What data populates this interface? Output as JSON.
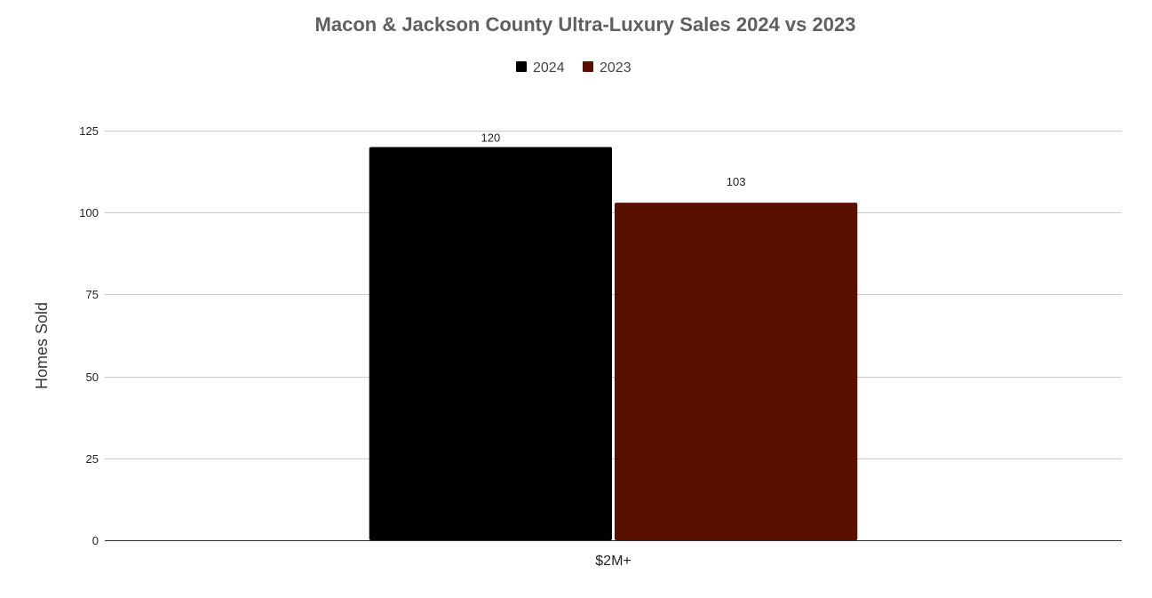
{
  "chart_data": {
    "type": "bar",
    "title": "Macon & Jackson County Ultra-Luxury Sales 2024 vs 2023",
    "xlabel": "",
    "ylabel": "Homes Sold",
    "categories": [
      "$2M+"
    ],
    "series": [
      {
        "name": "2024",
        "values": [
          120
        ],
        "color": "#000000"
      },
      {
        "name": "2023",
        "values": [
          103
        ],
        "color": "#5a1000"
      }
    ],
    "ylim": [
      0,
      125
    ],
    "yticks": [
      0,
      25,
      50,
      75,
      100,
      125
    ],
    "ytick_labels": [
      "0",
      "25",
      "50",
      "75",
      "100",
      "125"
    ],
    "data_labels": [
      "120",
      "103"
    ],
    "legend_position": "top-center",
    "grid": true
  }
}
